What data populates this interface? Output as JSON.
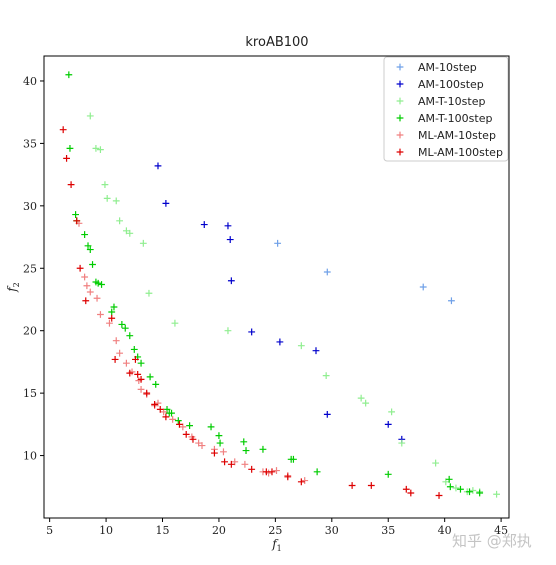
{
  "chart_data": {
    "type": "scatter",
    "title": "kroAB100",
    "xlabel": "f",
    "xlabel_sub": "1",
    "ylabel": "f",
    "ylabel_sub": "2",
    "xlim": [
      4.5,
      45.7
    ],
    "ylim": [
      5.0,
      42.0
    ],
    "xticks": [
      5,
      10,
      15,
      20,
      25,
      30,
      35,
      40,
      45
    ],
    "yticks": [
      10,
      15,
      20,
      25,
      30,
      35,
      40
    ],
    "legend_position": "top-right",
    "series": [
      {
        "name": "AM-10step",
        "color": "#6fa0e8",
        "points": [
          [
            25.2,
            27.0
          ],
          [
            29.6,
            24.7
          ],
          [
            38.1,
            23.5
          ],
          [
            40.6,
            22.4
          ]
        ]
      },
      {
        "name": "AM-100step",
        "color": "#0000cc",
        "points": [
          [
            14.6,
            33.2
          ],
          [
            15.3,
            30.2
          ],
          [
            18.7,
            28.5
          ],
          [
            20.8,
            28.4
          ],
          [
            21.0,
            27.3
          ],
          [
            21.1,
            24.0
          ],
          [
            22.9,
            19.9
          ],
          [
            25.4,
            19.1
          ],
          [
            28.6,
            18.4
          ],
          [
            29.6,
            13.3
          ],
          [
            35.0,
            12.5
          ],
          [
            36.2,
            11.3
          ]
        ]
      },
      {
        "name": "AM-T-10step",
        "color": "#90ee90",
        "points": [
          [
            8.6,
            37.2
          ],
          [
            9.1,
            34.6
          ],
          [
            9.5,
            34.5
          ],
          [
            9.9,
            31.7
          ],
          [
            10.1,
            30.6
          ],
          [
            10.9,
            30.4
          ],
          [
            11.2,
            28.8
          ],
          [
            11.8,
            28.0
          ],
          [
            12.1,
            27.8
          ],
          [
            13.3,
            27.0
          ],
          [
            13.8,
            23.0
          ],
          [
            16.1,
            20.6
          ],
          [
            20.8,
            20.0
          ],
          [
            27.3,
            18.8
          ],
          [
            29.5,
            16.4
          ],
          [
            32.6,
            14.6
          ],
          [
            33.0,
            14.2
          ],
          [
            35.3,
            13.5
          ],
          [
            36.2,
            11.0
          ],
          [
            39.2,
            9.4
          ],
          [
            40.1,
            7.9
          ],
          [
            41.0,
            7.4
          ],
          [
            42.0,
            7.1
          ],
          [
            42.5,
            7.2
          ],
          [
            43.1,
            7.1
          ],
          [
            44.6,
            6.9
          ]
        ]
      },
      {
        "name": "AM-T-100step",
        "color": "#00cc00",
        "points": [
          [
            6.7,
            40.5
          ],
          [
            6.8,
            34.6
          ],
          [
            7.3,
            29.3
          ],
          [
            7.4,
            28.8
          ],
          [
            8.1,
            27.7
          ],
          [
            8.4,
            26.8
          ],
          [
            8.6,
            26.5
          ],
          [
            8.8,
            25.3
          ],
          [
            9.1,
            23.9
          ],
          [
            9.3,
            23.8
          ],
          [
            9.6,
            23.7
          ],
          [
            10.5,
            21.5
          ],
          [
            10.7,
            21.9
          ],
          [
            11.4,
            20.5
          ],
          [
            11.7,
            20.2
          ],
          [
            12.1,
            19.6
          ],
          [
            12.5,
            18.5
          ],
          [
            12.8,
            17.9
          ],
          [
            13.1,
            17.4
          ],
          [
            13.9,
            16.3
          ],
          [
            14.4,
            15.7
          ],
          [
            15.4,
            13.7
          ],
          [
            15.6,
            13.4
          ],
          [
            15.8,
            13.4
          ],
          [
            16.4,
            12.8
          ],
          [
            17.4,
            12.4
          ],
          [
            19.3,
            12.3
          ],
          [
            20.0,
            11.6
          ],
          [
            20.1,
            11.0
          ],
          [
            22.2,
            11.1
          ],
          [
            22.4,
            10.4
          ],
          [
            23.9,
            10.5
          ],
          [
            26.4,
            9.7
          ],
          [
            26.6,
            9.7
          ],
          [
            28.7,
            8.7
          ],
          [
            35.0,
            8.5
          ],
          [
            40.4,
            8.1
          ],
          [
            40.5,
            7.5
          ],
          [
            41.4,
            7.3
          ],
          [
            42.2,
            7.1
          ],
          [
            43.1,
            7.0
          ]
        ]
      },
      {
        "name": "ML-AM-10step",
        "color": "#f08080",
        "points": [
          [
            7.6,
            28.6
          ],
          [
            8.1,
            24.3
          ],
          [
            8.3,
            23.6
          ],
          [
            8.6,
            23.1
          ],
          [
            9.2,
            22.6
          ],
          [
            9.5,
            21.3
          ],
          [
            10.3,
            20.6
          ],
          [
            10.9,
            19.2
          ],
          [
            11.2,
            18.2
          ],
          [
            11.8,
            17.4
          ],
          [
            12.3,
            16.7
          ],
          [
            12.9,
            16.0
          ],
          [
            13.1,
            15.3
          ],
          [
            13.6,
            14.9
          ],
          [
            14.3,
            14.0
          ],
          [
            14.6,
            14.2
          ],
          [
            15.1,
            13.5
          ],
          [
            15.9,
            12.9
          ],
          [
            16.8,
            12.3
          ],
          [
            17.6,
            11.5
          ],
          [
            18.2,
            11.0
          ],
          [
            18.5,
            10.8
          ],
          [
            19.6,
            10.5
          ],
          [
            20.4,
            10.3
          ],
          [
            21.4,
            9.5
          ],
          [
            22.3,
            9.3
          ],
          [
            23.9,
            8.7
          ],
          [
            24.4,
            8.6
          ],
          [
            25.1,
            8.8
          ],
          [
            26.1,
            8.4
          ],
          [
            27.6,
            8.0
          ]
        ]
      },
      {
        "name": "ML-AM-100step",
        "color": "#dd0000",
        "points": [
          [
            6.2,
            36.1
          ],
          [
            6.5,
            33.8
          ],
          [
            6.9,
            31.7
          ],
          [
            7.4,
            28.8
          ],
          [
            7.7,
            25.0
          ],
          [
            8.2,
            22.4
          ],
          [
            10.5,
            21.0
          ],
          [
            10.8,
            17.7
          ],
          [
            12.1,
            16.6
          ],
          [
            12.6,
            17.7
          ],
          [
            12.8,
            16.5
          ],
          [
            13.1,
            16.1
          ],
          [
            13.6,
            15.0
          ],
          [
            14.3,
            14.1
          ],
          [
            14.8,
            13.7
          ],
          [
            15.3,
            13.1
          ],
          [
            16.5,
            12.5
          ],
          [
            17.1,
            11.7
          ],
          [
            17.7,
            11.3
          ],
          [
            19.6,
            10.2
          ],
          [
            20.5,
            9.5
          ],
          [
            21.1,
            9.3
          ],
          [
            22.9,
            8.9
          ],
          [
            24.2,
            8.7
          ],
          [
            24.7,
            8.7
          ],
          [
            26.1,
            8.3
          ],
          [
            27.3,
            7.9
          ],
          [
            31.8,
            7.6
          ],
          [
            33.5,
            7.6
          ],
          [
            36.6,
            7.3
          ],
          [
            37.0,
            7.0
          ],
          [
            39.5,
            6.8
          ]
        ]
      }
    ]
  },
  "watermark": "知乎 @郑执"
}
